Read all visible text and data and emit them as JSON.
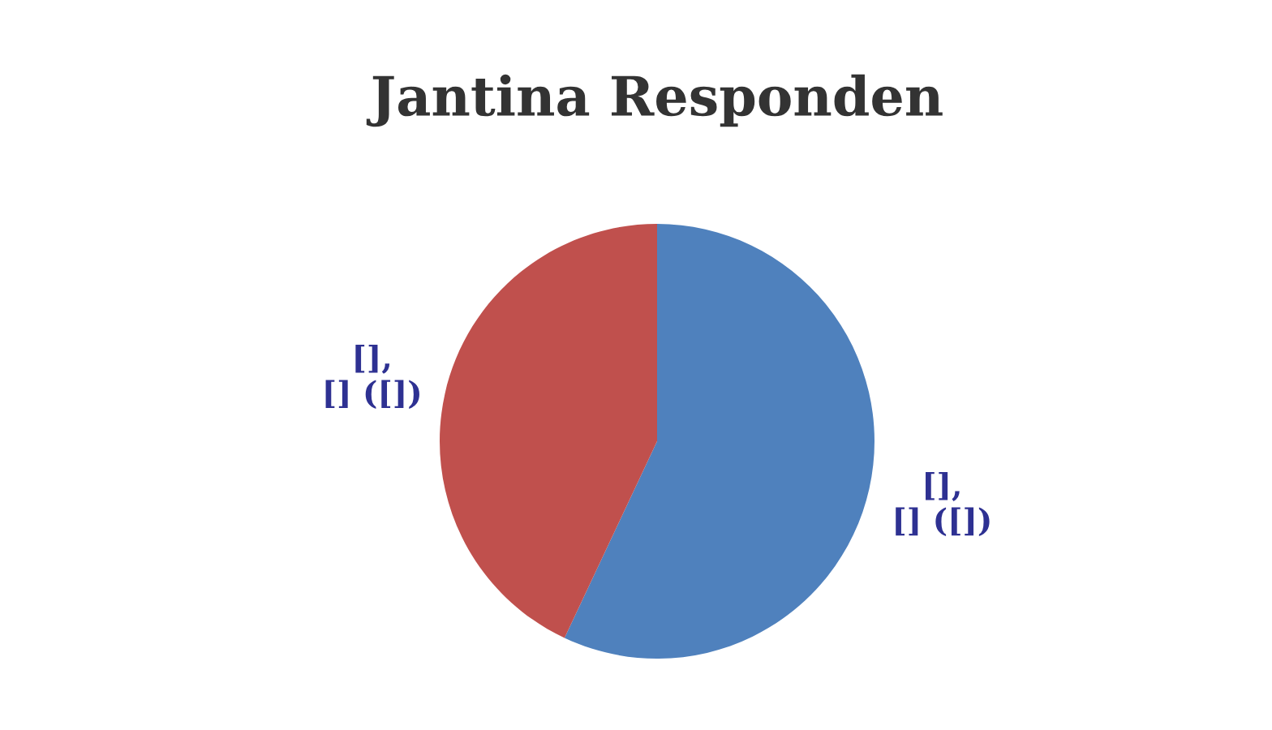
{
  "chart_data": {
    "type": "pie",
    "title": "Jantina Responden",
    "categories": [
      null,
      null
    ],
    "values": [
      57,
      43
    ],
    "colors": [
      "#4f81bd",
      "#c0504d"
    ],
    "value_labels": [
      "[],\n[] ([])",
      "[],\n[] ([])"
    ]
  }
}
